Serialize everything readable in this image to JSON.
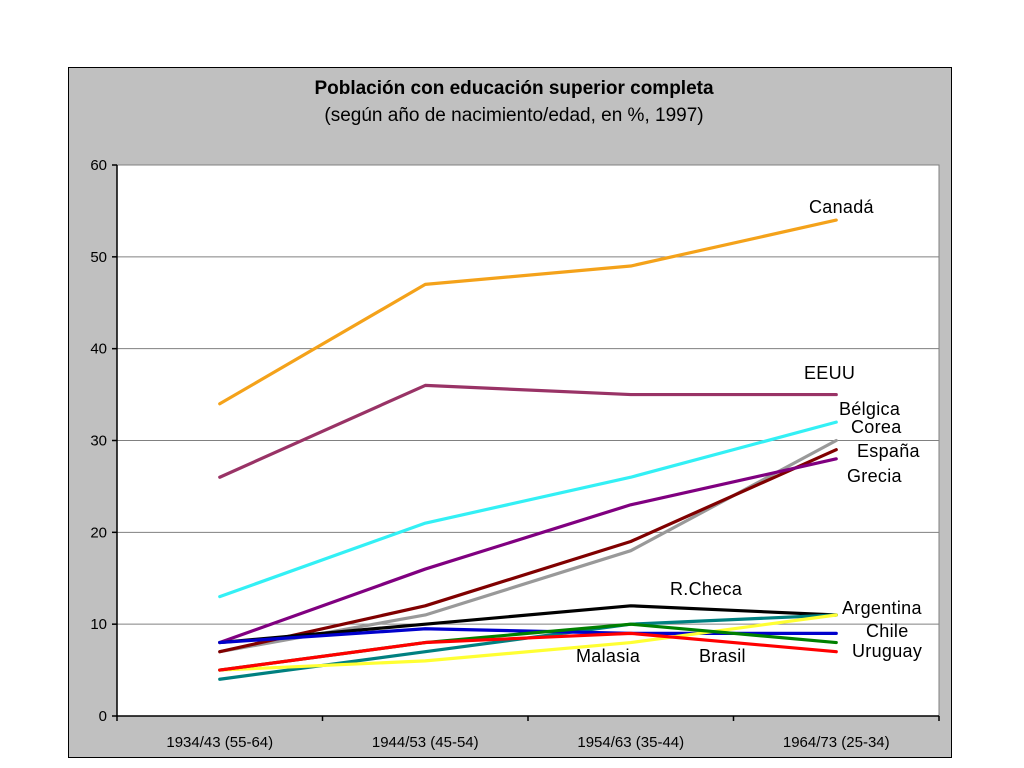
{
  "chart_data": {
    "type": "line",
    "title": "Población con educación superior completa",
    "subtitle": "(según año de nacimiento/edad, en %, 1997)",
    "categories": [
      "1934/43 (55-64)",
      "1944/53 (45-54)",
      "1954/63 (35-44)",
      "1964/73 (25-34)"
    ],
    "ylim": [
      0,
      60
    ],
    "yticks": [
      "0",
      "10",
      "20",
      "30",
      "40",
      "50",
      "60"
    ],
    "grid": true,
    "legend": "labels at line ends",
    "series": [
      {
        "name": "Canadá",
        "color": "#f4a21a",
        "values": [
          34,
          47,
          49,
          54
        ]
      },
      {
        "name": "EEUU",
        "color": "#993366",
        "values": [
          26,
          36,
          35,
          35
        ]
      },
      {
        "name": "Bélgica",
        "color": "#33f0f5",
        "values": [
          13,
          21,
          26,
          32
        ]
      },
      {
        "name": "Corea",
        "color": "#999999",
        "values": [
          7,
          11,
          18,
          30
        ]
      },
      {
        "name": "España",
        "color": "#800000",
        "values": [
          7,
          12,
          19,
          29
        ]
      },
      {
        "name": "Grecia",
        "color": "#800080",
        "values": [
          8,
          16,
          23,
          28
        ]
      },
      {
        "name": "R.Checa",
        "color": "#000000",
        "values": [
          8,
          10,
          12,
          11
        ]
      },
      {
        "name": "Argentina",
        "color": "#008080",
        "values": [
          4,
          7,
          10,
          11
        ]
      },
      {
        "name": "Chile",
        "color": "#0000cc",
        "values": [
          8,
          9.5,
          9,
          9
        ]
      },
      {
        "name": "Malasia",
        "color": "#ffff33",
        "values": [
          5,
          6,
          8,
          11
        ]
      },
      {
        "name": "Brasil",
        "color": "#008000",
        "values": [
          5,
          8,
          10,
          8
        ]
      },
      {
        "name": "Uruguay",
        "color": "#ff0000",
        "values": [
          5,
          8,
          9,
          7
        ]
      }
    ]
  }
}
